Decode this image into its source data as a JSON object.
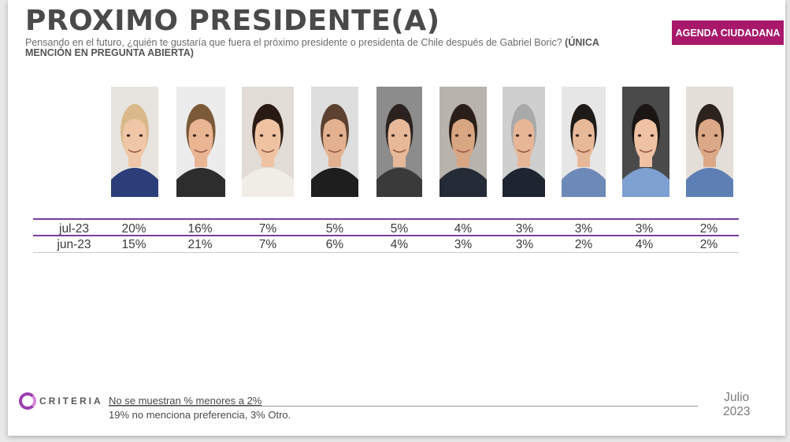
{
  "header": {
    "title": "PROXIMO PRESIDENTE(A)",
    "subtitle": "Pensando en el futuro, ¿quién te gustaría que fuera el próximo presidente o presidenta de Chile después de Gabriel Boric?",
    "subtitle_bold": "(ÚNICA MENCIÓN EN PREGUNTA ABIERTA)",
    "badge": "AGENDA CIUDADANA"
  },
  "colors": {
    "accent": "#a8196b",
    "rule": "#7b3d97",
    "logo": "#9b3fb0"
  },
  "chart_data": {
    "type": "table",
    "columns": 10,
    "rows": [
      {
        "label": "jul-23",
        "values": [
          "20%",
          "16%",
          "7%",
          "5%",
          "5%",
          "4%",
          "3%",
          "3%",
          "3%",
          "2%"
        ]
      },
      {
        "label": "jun-23",
        "values": [
          "15%",
          "21%",
          "7%",
          "6%",
          "4%",
          "3%",
          "3%",
          "2%",
          "4%",
          "2%"
        ]
      }
    ]
  },
  "photos": [
    {
      "bg": "#e7e4df",
      "skin": "#f0c7a6",
      "hair": "#d9b98a",
      "shirt": "#2c3e7a"
    },
    {
      "bg": "#ececec",
      "skin": "#e9b592",
      "hair": "#7b5a3a",
      "shirt": "#2d2d2d"
    },
    {
      "bg": "#e2dcd6",
      "skin": "#efc3a2",
      "hair": "#2a1a14",
      "shirt": "#f0ece6"
    },
    {
      "bg": "#dedede",
      "skin": "#e3b18f",
      "hair": "#5c4030",
      "shirt": "#1e1e1e"
    },
    {
      "bg": "#8c8c8c",
      "skin": "#e7b998",
      "hair": "#2b2220",
      "shirt": "#3a3a3a"
    },
    {
      "bg": "#b8b3ac",
      "skin": "#d9a683",
      "hair": "#2a1e18",
      "shirt": "#242a36"
    },
    {
      "bg": "#cfcfcf",
      "skin": "#e6b697",
      "hair": "#a9a9a9",
      "shirt": "#1e2430"
    },
    {
      "bg": "#e6e6e6",
      "skin": "#e8b999",
      "hair": "#1d1a18",
      "shirt": "#6c89b8"
    },
    {
      "bg": "#4a4a4a",
      "skin": "#eec2a3",
      "hair": "#1b1614",
      "shirt": "#7ea0d0"
    },
    {
      "bg": "#e4ded8",
      "skin": "#dba987",
      "hair": "#2c231d",
      "shirt": "#5d7fb4"
    }
  ],
  "footer": {
    "brand": "CRITERIA",
    "note1": "No se muestran % menores a 2%",
    "note2": "19% no menciona preferencia, 3% Otro.",
    "date_month": "Julio",
    "date_year": "2023"
  }
}
